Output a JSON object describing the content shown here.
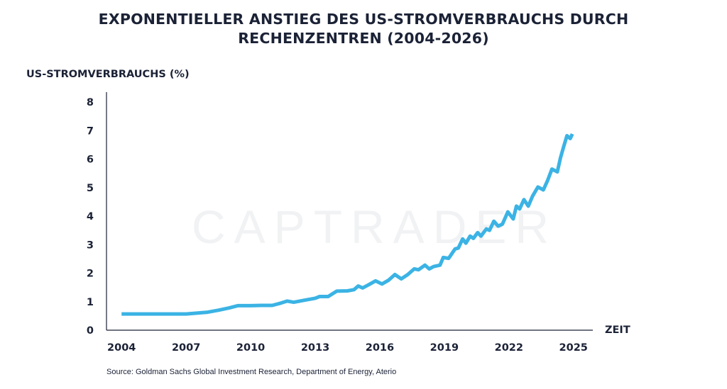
{
  "title_line1": "EXPONENTIELLER ANSTIEG DES US-STROMVERBRAUCHS DURCH",
  "title_line2": "RECHENZENTREN (2004-2026)",
  "watermark": "CAPTRADER",
  "source": "Source: Goldman Sachs Global Investment Research, Department of Energy, Aterio",
  "chart_data": {
    "type": "line",
    "title": "EXPONENTIELLER ANSTIEG DES US-STROMVERBRAUCHS DURCH RECHENZENTREN (2004-2026)",
    "xlabel": "ZEIT",
    "ylabel": "US-STROMVERBRAUCHS (%)",
    "xlim": [
      2003.3,
      2025.9
    ],
    "ylim": [
      0,
      8
    ],
    "x_ticks": [
      2004,
      2007,
      2010,
      2013,
      2016,
      2019,
      2022,
      2025
    ],
    "y_ticks": [
      0,
      1,
      2,
      3,
      4,
      5,
      6,
      7,
      8
    ],
    "grid": false,
    "line_color": "#3bb3e4",
    "series": [
      {
        "x": [
          2004.0,
          2005.0,
          2006.0,
          2007.0,
          2007.5,
          2008.0,
          2008.5,
          2009.0,
          2009.4,
          2010.0,
          2010.5,
          2011.0,
          2011.4,
          2011.7,
          2012.0,
          2012.5,
          2013.0,
          2013.2,
          2013.6,
          2014.0,
          2014.5,
          2014.8,
          2015.0,
          2015.2,
          2015.5,
          2015.8,
          2016.1,
          2016.4,
          2016.7,
          2017.0,
          2017.3,
          2017.6,
          2017.8,
          2018.1,
          2018.3,
          2018.5,
          2018.8,
          2018.95,
          2019.2,
          2019.5,
          2019.65,
          2019.85,
          2020.0,
          2020.2,
          2020.35,
          2020.55,
          2020.7,
          2020.95,
          2021.1,
          2021.3,
          2021.5,
          2021.7,
          2021.95,
          2022.2,
          2022.35,
          2022.5,
          2022.7,
          2022.9,
          2023.1,
          2023.35,
          2023.6,
          2023.8,
          2024.0,
          2024.25,
          2024.4,
          2024.55,
          2024.7,
          2024.85,
          2024.95
        ],
        "y": [
          0.57,
          0.57,
          0.57,
          0.57,
          0.6,
          0.63,
          0.7,
          0.78,
          0.86,
          0.86,
          0.87,
          0.87,
          0.95,
          1.02,
          0.98,
          1.05,
          1.12,
          1.18,
          1.18,
          1.37,
          1.38,
          1.42,
          1.55,
          1.48,
          1.6,
          1.73,
          1.62,
          1.75,
          1.95,
          1.8,
          1.95,
          2.15,
          2.12,
          2.28,
          2.15,
          2.23,
          2.28,
          2.55,
          2.52,
          2.85,
          2.88,
          3.2,
          3.05,
          3.3,
          3.22,
          3.42,
          3.3,
          3.55,
          3.5,
          3.82,
          3.65,
          3.72,
          4.15,
          3.9,
          4.35,
          4.25,
          4.58,
          4.35,
          4.7,
          5.02,
          4.92,
          5.25,
          5.65,
          5.55,
          6.05,
          6.45,
          6.82,
          6.72,
          6.88
        ]
      }
    ]
  }
}
